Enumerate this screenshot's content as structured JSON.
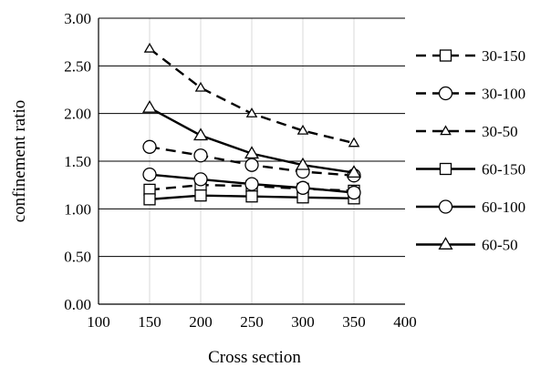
{
  "chart_data": {
    "type": "line",
    "title": "",
    "xlabel": "Cross section",
    "ylabel": "confinement ratio",
    "xlim": [
      100,
      400
    ],
    "ylim": [
      0,
      3
    ],
    "xticks": [
      "100",
      "150",
      "200",
      "250",
      "300",
      "350",
      "400"
    ],
    "yticks": [
      "0.00",
      "0.50",
      "1.00",
      "1.50",
      "2.00",
      "2.50",
      "3.00"
    ],
    "grid": {
      "vertical": true,
      "horizontal": true
    },
    "legend_position": "right",
    "x": [
      150,
      200,
      250,
      300,
      350
    ],
    "series": [
      {
        "name": "30-150",
        "values": [
          1.2,
          1.25,
          1.24,
          1.21,
          1.19
        ],
        "marker": "square",
        "dash": "dashed",
        "color": "#000000"
      },
      {
        "name": "30-100",
        "values": [
          1.65,
          1.56,
          1.46,
          1.39,
          1.35
        ],
        "marker": "circle",
        "dash": "dashed",
        "color": "#000000"
      },
      {
        "name": "30-50",
        "values": [
          2.68,
          2.27,
          2.0,
          1.82,
          1.69
        ],
        "marker": "triangle",
        "dash": "dashed",
        "color": "#000000"
      },
      {
        "name": "60-150",
        "values": [
          1.1,
          1.14,
          1.13,
          1.12,
          1.11
        ],
        "marker": "square",
        "dash": "solid",
        "color": "#000000"
      },
      {
        "name": "60-100",
        "values": [
          1.36,
          1.31,
          1.26,
          1.22,
          1.17
        ],
        "marker": "circle",
        "dash": "solid",
        "color": "#000000"
      },
      {
        "name": "60-50",
        "values": [
          2.06,
          1.77,
          1.58,
          1.46,
          1.38
        ],
        "marker": "triangle",
        "dash": "solid",
        "color": "#000000"
      }
    ]
  }
}
